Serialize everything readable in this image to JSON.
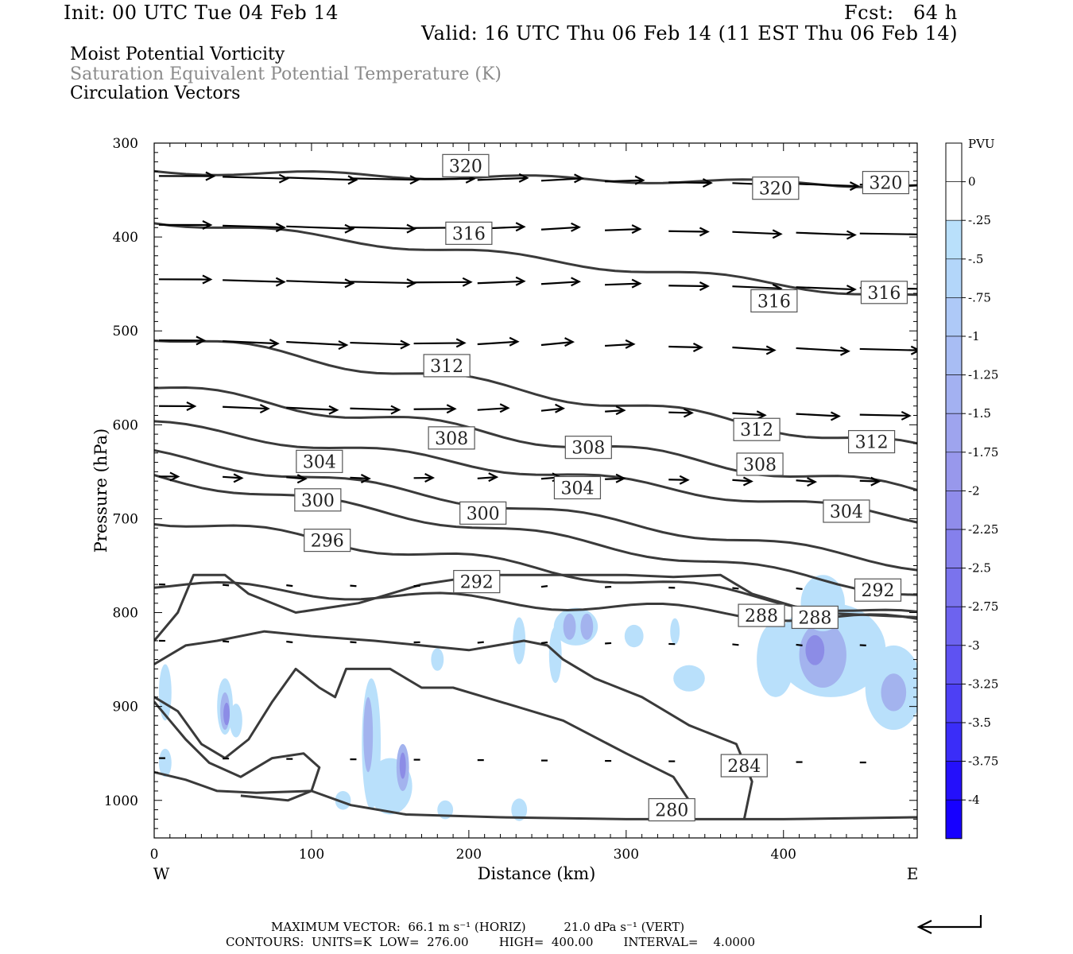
{
  "header": {
    "init": "Init: 00 UTC Tue 04 Feb 14",
    "fcst": "Fcst:   64 h",
    "valid": "Valid: 16 UTC Thu 06 Feb 14 (11 EST Thu 06 Feb 14)",
    "field1": "Moist Potential Vorticity",
    "field2": "Saturation Equivalent Potential Temperature (K)",
    "field3": "Circulation Vectors"
  },
  "footer": {
    "maxvec": "MAXIMUM VECTOR:  66.1 m s⁻¹ (HORIZ)          21.0 dPa s⁻¹ (VERT)",
    "contours": "CONTOURS:  UNITS=K  LOW=  276.00        HIGH=  400.00        INTERVAL=    4.0000"
  },
  "colors": {
    "contour": "#3a3a3a",
    "vector": "#000000",
    "shade_light": "#b9e0fb",
    "shade_mid": "#a3b3ee",
    "shade_dark": "#8c8ce6"
  },
  "chart_data": {
    "type": "contour-cross-section",
    "xlabel": "Distance (km)",
    "ylabel": "Pressure (hPa)",
    "xlim": [
      0,
      485
    ],
    "ylim": [
      300,
      1040
    ],
    "x_ticks": [
      "0",
      "100",
      "200",
      "300",
      "400"
    ],
    "x_tick_values": [
      0,
      100,
      200,
      300,
      400
    ],
    "y_ticks": [
      "300",
      "400",
      "500",
      "600",
      "700",
      "800",
      "900",
      "1000"
    ],
    "y_tick_values": [
      300,
      400,
      500,
      600,
      700,
      800,
      900,
      1000
    ],
    "left_end_label": "W",
    "right_end_label": "E",
    "legend": {
      "title": "PVU",
      "levels": [
        "0",
        "-.25",
        "-.5",
        "-.75",
        "-1",
        "-1.25",
        "-1.5",
        "-1.75",
        "-2",
        "-2.25",
        "-2.5",
        "-2.75",
        "-3",
        "-3.25",
        "-3.5",
        "-3.75",
        "-4"
      ],
      "colors": [
        "#ffffff",
        "#ffffff",
        "#b9e0fb",
        "#b3d6fa",
        "#aec9f7",
        "#a8bdf4",
        "#a3b1f1",
        "#9ea4ee",
        "#9898ec",
        "#8f8ceb",
        "#8580ec",
        "#7a73ed",
        "#6d63ef",
        "#5e52f2",
        "#4d40f5",
        "#3a2df8",
        "#2410fb",
        "#1600ff"
      ]
    },
    "contour_levels": [
      280,
      284,
      288,
      292,
      296,
      300,
      304,
      308,
      312,
      316,
      320
    ],
    "contour_labels": [
      {
        "value": "320",
        "x": 198,
        "p": 324
      },
      {
        "value": "320",
        "x": 395,
        "p": 348
      },
      {
        "value": "320",
        "x": 465,
        "p": 342
      },
      {
        "value": "316",
        "x": 200,
        "p": 396
      },
      {
        "value": "316",
        "x": 394,
        "p": 468
      },
      {
        "value": "316",
        "x": 464,
        "p": 459
      },
      {
        "value": "312",
        "x": 186,
        "p": 537
      },
      {
        "value": "312",
        "x": 383,
        "p": 605
      },
      {
        "value": "312",
        "x": 456,
        "p": 618
      },
      {
        "value": "308",
        "x": 189,
        "p": 614
      },
      {
        "value": "308",
        "x": 276,
        "p": 624
      },
      {
        "value": "308",
        "x": 385,
        "p": 642
      },
      {
        "value": "304",
        "x": 105,
        "p": 639
      },
      {
        "value": "304",
        "x": 269,
        "p": 667
      },
      {
        "value": "304",
        "x": 440,
        "p": 692
      },
      {
        "value": "300",
        "x": 104,
        "p": 680
      },
      {
        "value": "300",
        "x": 209,
        "p": 694
      },
      {
        "value": "296",
        "x": 110,
        "p": 723
      },
      {
        "value": "292",
        "x": 205,
        "p": 767
      },
      {
        "value": "292",
        "x": 460,
        "p": 776
      },
      {
        "value": "288",
        "x": 386,
        "p": 803
      },
      {
        "value": "288",
        "x": 420,
        "p": 805
      },
      {
        "value": "284",
        "x": 375,
        "p": 963
      },
      {
        "value": "280",
        "x": 329,
        "p": 1010
      }
    ]
  }
}
